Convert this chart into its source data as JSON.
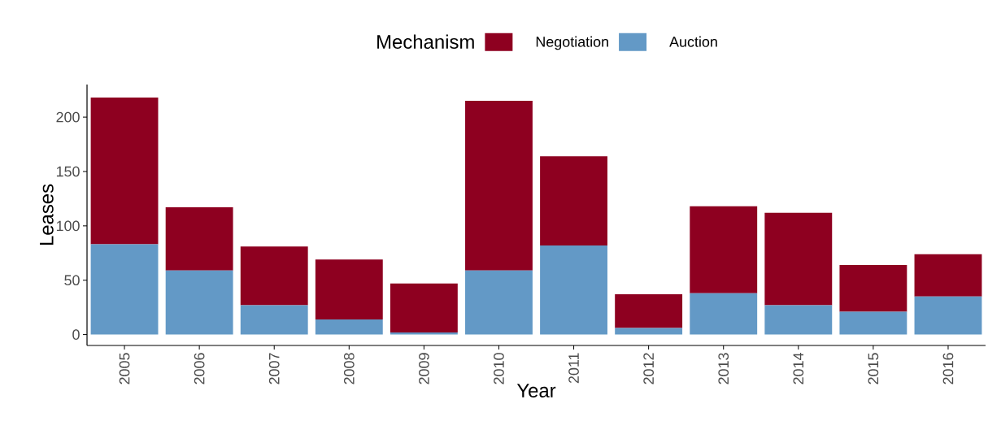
{
  "chart_data": {
    "type": "bar",
    "stacked": true,
    "xlabel": "Year",
    "ylabel": "Leases",
    "legend_title": "Mechanism",
    "legend": "top",
    "categories": [
      "2005",
      "2006",
      "2007",
      "2008",
      "2009",
      "2010",
      "2011",
      "2012",
      "2013",
      "2014",
      "2015",
      "2016"
    ],
    "series": [
      {
        "name": "Auction",
        "color": "#6399c6",
        "values": [
          83,
          59,
          27,
          14,
          2,
          59,
          82,
          6,
          38,
          27,
          21,
          35
        ]
      },
      {
        "name": "Negotiation",
        "color": "#8e0020",
        "values": [
          135,
          58,
          54,
          55,
          45,
          156,
          82,
          31,
          80,
          85,
          43,
          39
        ]
      }
    ],
    "ylim": [
      -10,
      230
    ],
    "yticks": [
      0,
      50,
      100,
      150,
      200
    ],
    "grid": false
  }
}
